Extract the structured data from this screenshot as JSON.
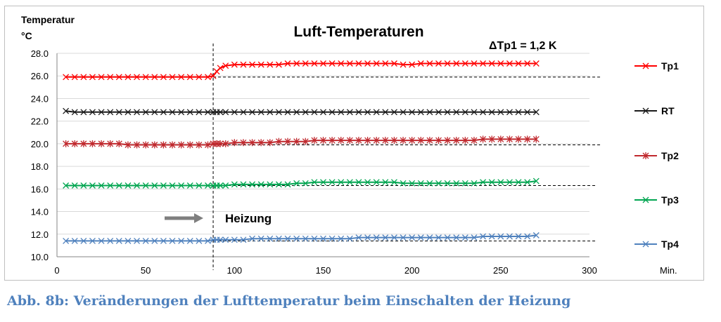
{
  "chart_data": {
    "type": "line",
    "title": "Luft-Temperaturen",
    "ylabel": [
      "Temperatur",
      "°C"
    ],
    "xlabel": "Min.",
    "xlim": [
      0,
      300
    ],
    "ylim": [
      10,
      28
    ],
    "xticks": [
      "0",
      "50",
      "100",
      "150",
      "200",
      "250",
      "300"
    ],
    "yticks": [
      "10.0",
      "12.0",
      "14.0",
      "16.0",
      "18.0",
      "20.0",
      "22.0",
      "24.0",
      "26.0",
      "28.0"
    ],
    "grid": "horizontal",
    "legend_position": "right",
    "annotations": {
      "delta": "ΔTp1 = 1,2 K",
      "heating": "Heizung",
      "heating_start_x": 88
    },
    "series": [
      {
        "name": "Tp1",
        "color": "#ff0000",
        "marker": "x",
        "x": [
          5,
          10,
          15,
          20,
          25,
          30,
          35,
          40,
          45,
          50,
          55,
          60,
          65,
          70,
          75,
          80,
          85,
          88,
          90,
          92,
          95,
          100,
          105,
          110,
          115,
          120,
          125,
          130,
          135,
          140,
          145,
          150,
          155,
          160,
          165,
          170,
          175,
          180,
          185,
          190,
          195,
          200,
          205,
          210,
          215,
          220,
          225,
          230,
          235,
          240,
          245,
          250,
          255,
          260,
          265,
          270
        ],
        "y": [
          25.9,
          25.9,
          25.9,
          25.9,
          25.9,
          25.9,
          25.9,
          25.9,
          25.9,
          25.9,
          25.9,
          25.9,
          25.9,
          25.9,
          25.9,
          25.9,
          25.9,
          26.0,
          26.4,
          26.7,
          26.9,
          27.0,
          27.0,
          27.0,
          27.0,
          27.0,
          27.0,
          27.1,
          27.1,
          27.1,
          27.1,
          27.1,
          27.1,
          27.1,
          27.1,
          27.1,
          27.1,
          27.1,
          27.1,
          27.1,
          27.0,
          27.0,
          27.1,
          27.1,
          27.1,
          27.1,
          27.1,
          27.1,
          27.1,
          27.1,
          27.1,
          27.1,
          27.1,
          27.1,
          27.1,
          27.1
        ],
        "baseline": 25.9
      },
      {
        "name": "RT",
        "color": "#1a1a1a",
        "marker": "x",
        "x": [
          5,
          10,
          15,
          20,
          25,
          30,
          35,
          40,
          45,
          50,
          55,
          60,
          65,
          70,
          75,
          80,
          85,
          88,
          90,
          92,
          95,
          100,
          105,
          110,
          115,
          120,
          125,
          130,
          135,
          140,
          145,
          150,
          155,
          160,
          165,
          170,
          175,
          180,
          185,
          190,
          195,
          200,
          205,
          210,
          215,
          220,
          225,
          230,
          235,
          240,
          245,
          250,
          255,
          260,
          265,
          270
        ],
        "y": [
          22.9,
          22.8,
          22.8,
          22.8,
          22.8,
          22.8,
          22.8,
          22.8,
          22.8,
          22.8,
          22.8,
          22.8,
          22.8,
          22.8,
          22.8,
          22.8,
          22.8,
          22.8,
          22.8,
          22.8,
          22.8,
          22.8,
          22.8,
          22.8,
          22.8,
          22.8,
          22.8,
          22.8,
          22.8,
          22.8,
          22.8,
          22.8,
          22.8,
          22.8,
          22.8,
          22.8,
          22.8,
          22.8,
          22.8,
          22.8,
          22.8,
          22.8,
          22.8,
          22.8,
          22.8,
          22.8,
          22.8,
          22.8,
          22.8,
          22.8,
          22.8,
          22.8,
          22.8,
          22.8,
          22.8,
          22.8
        ]
      },
      {
        "name": "Tp2",
        "color": "#c0282d",
        "marker": "*",
        "x": [
          5,
          10,
          15,
          20,
          25,
          30,
          35,
          40,
          45,
          50,
          55,
          60,
          65,
          70,
          75,
          80,
          85,
          88,
          90,
          92,
          95,
          100,
          105,
          110,
          115,
          120,
          125,
          130,
          135,
          140,
          145,
          150,
          155,
          160,
          165,
          170,
          175,
          180,
          185,
          190,
          195,
          200,
          205,
          210,
          215,
          220,
          225,
          230,
          235,
          240,
          245,
          250,
          255,
          260,
          265,
          270
        ],
        "y": [
          20.0,
          20.0,
          20.0,
          20.0,
          20.0,
          20.0,
          20.0,
          19.9,
          19.9,
          19.9,
          19.9,
          19.9,
          19.9,
          19.9,
          19.9,
          19.9,
          19.9,
          20.0,
          20.0,
          20.0,
          20.0,
          20.1,
          20.1,
          20.1,
          20.1,
          20.1,
          20.2,
          20.2,
          20.2,
          20.2,
          20.3,
          20.3,
          20.3,
          20.3,
          20.3,
          20.3,
          20.3,
          20.3,
          20.3,
          20.3,
          20.3,
          20.3,
          20.3,
          20.3,
          20.3,
          20.3,
          20.3,
          20.3,
          20.3,
          20.4,
          20.4,
          20.4,
          20.4,
          20.4,
          20.4,
          20.4
        ],
        "baseline": 19.9
      },
      {
        "name": "Tp3",
        "color": "#00a550",
        "marker": "x",
        "x": [
          5,
          10,
          15,
          20,
          25,
          30,
          35,
          40,
          45,
          50,
          55,
          60,
          65,
          70,
          75,
          80,
          85,
          88,
          90,
          92,
          95,
          100,
          105,
          110,
          115,
          120,
          125,
          130,
          135,
          140,
          145,
          150,
          155,
          160,
          165,
          170,
          175,
          180,
          185,
          190,
          195,
          200,
          205,
          210,
          215,
          220,
          225,
          230,
          235,
          240,
          245,
          250,
          255,
          260,
          265,
          270
        ],
        "y": [
          16.3,
          16.3,
          16.3,
          16.3,
          16.3,
          16.3,
          16.3,
          16.3,
          16.3,
          16.3,
          16.3,
          16.3,
          16.3,
          16.3,
          16.3,
          16.3,
          16.3,
          16.3,
          16.3,
          16.3,
          16.3,
          16.4,
          16.4,
          16.4,
          16.4,
          16.4,
          16.4,
          16.4,
          16.5,
          16.5,
          16.6,
          16.6,
          16.6,
          16.6,
          16.6,
          16.6,
          16.6,
          16.6,
          16.6,
          16.6,
          16.5,
          16.5,
          16.5,
          16.5,
          16.5,
          16.5,
          16.5,
          16.5,
          16.5,
          16.6,
          16.6,
          16.6,
          16.6,
          16.6,
          16.6,
          16.7
        ],
        "baseline": 16.3
      },
      {
        "name": "Tp4",
        "color": "#4f81bd",
        "marker": "x",
        "x": [
          5,
          10,
          15,
          20,
          25,
          30,
          35,
          40,
          45,
          50,
          55,
          60,
          65,
          70,
          75,
          80,
          85,
          88,
          90,
          92,
          95,
          100,
          105,
          110,
          115,
          120,
          125,
          130,
          135,
          140,
          145,
          150,
          155,
          160,
          165,
          170,
          175,
          180,
          185,
          190,
          195,
          200,
          205,
          210,
          215,
          220,
          225,
          230,
          235,
          240,
          245,
          250,
          255,
          260,
          265,
          270
        ],
        "y": [
          11.4,
          11.4,
          11.4,
          11.4,
          11.4,
          11.4,
          11.4,
          11.4,
          11.4,
          11.4,
          11.4,
          11.4,
          11.4,
          11.4,
          11.4,
          11.4,
          11.4,
          11.5,
          11.5,
          11.5,
          11.5,
          11.5,
          11.5,
          11.6,
          11.6,
          11.6,
          11.6,
          11.6,
          11.6,
          11.6,
          11.6,
          11.6,
          11.6,
          11.6,
          11.6,
          11.7,
          11.7,
          11.7,
          11.7,
          11.7,
          11.7,
          11.7,
          11.7,
          11.7,
          11.7,
          11.7,
          11.7,
          11.7,
          11.7,
          11.8,
          11.8,
          11.8,
          11.8,
          11.8,
          11.8,
          11.9
        ],
        "baseline": 11.4
      }
    ]
  },
  "caption": "Abb. 8b: Veränderungen der Lufttemperatur beim Einschalten der Heizung"
}
